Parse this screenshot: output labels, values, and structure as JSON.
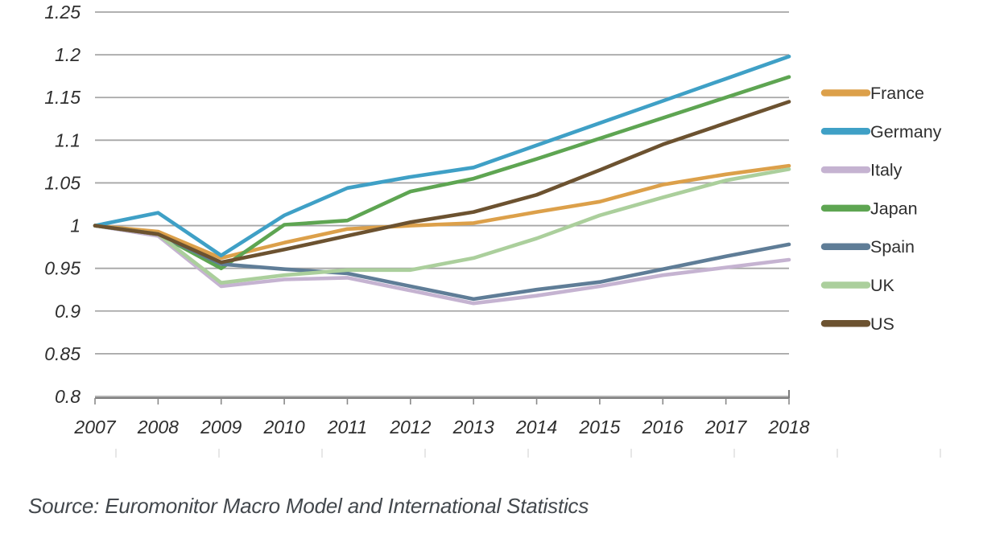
{
  "chart_data": {
    "type": "line",
    "title": "",
    "xlabel": "",
    "ylabel": "",
    "x": [
      2007,
      2008,
      2009,
      2010,
      2011,
      2012,
      2013,
      2014,
      2015,
      2016,
      2017,
      2018
    ],
    "series": [
      {
        "name": "France",
        "color": "#DCA04A",
        "values": [
          1.0,
          0.993,
          0.962,
          0.98,
          0.996,
          1.0,
          1.003,
          1.016,
          1.028,
          1.048,
          1.06,
          1.07
        ]
      },
      {
        "name": "Germany",
        "color": "#3FA0C6",
        "values": [
          1.0,
          1.015,
          0.965,
          1.012,
          1.044,
          1.057,
          1.068,
          1.094,
          1.12,
          1.146,
          1.172,
          1.198
        ]
      },
      {
        "name": "Italy",
        "color": "#C5B3D1",
        "values": [
          1.0,
          0.988,
          0.929,
          0.937,
          0.939,
          0.924,
          0.909,
          0.918,
          0.929,
          0.942,
          0.951,
          0.96
        ]
      },
      {
        "name": "Japan",
        "color": "#5EA552",
        "values": [
          1.0,
          0.99,
          0.95,
          1.001,
          1.006,
          1.04,
          1.055,
          1.078,
          1.102,
          1.126,
          1.15,
          1.174
        ]
      },
      {
        "name": "Spain",
        "color": "#5F7D97",
        "values": [
          1.0,
          0.99,
          0.955,
          0.949,
          0.944,
          0.929,
          0.914,
          0.925,
          0.934,
          0.949,
          0.964,
          0.978
        ]
      },
      {
        "name": "UK",
        "color": "#ABCF9C",
        "values": [
          1.0,
          0.99,
          0.933,
          0.942,
          0.948,
          0.948,
          0.962,
          0.985,
          1.012,
          1.033,
          1.053,
          1.066
        ]
      },
      {
        "name": "US",
        "color": "#6C5230",
        "values": [
          1.0,
          0.99,
          0.957,
          0.972,
          0.988,
          1.004,
          1.016,
          1.036,
          1.065,
          1.095,
          1.12,
          1.145
        ]
      }
    ],
    "ylim": [
      0.8,
      1.25
    ],
    "ytick_values": [
      1.25,
      1.2,
      1.15,
      1.1,
      1.05,
      1.0,
      0.95,
      0.9,
      0.85,
      0.8
    ],
    "ytick_labels": [
      "1.25",
      "1.2",
      "1.15",
      "1.1",
      "1.05",
      "1",
      "0.95",
      "0.9",
      "0.85",
      "0.8"
    ],
    "grid": true,
    "legend_position": "right",
    "colors": {
      "gridline": "#a6a6a6",
      "axis_line": "#7d7d7d",
      "tick": "#8a8a8a"
    }
  },
  "source_note": "Source: Euromonitor Macro Model and International Statistics"
}
